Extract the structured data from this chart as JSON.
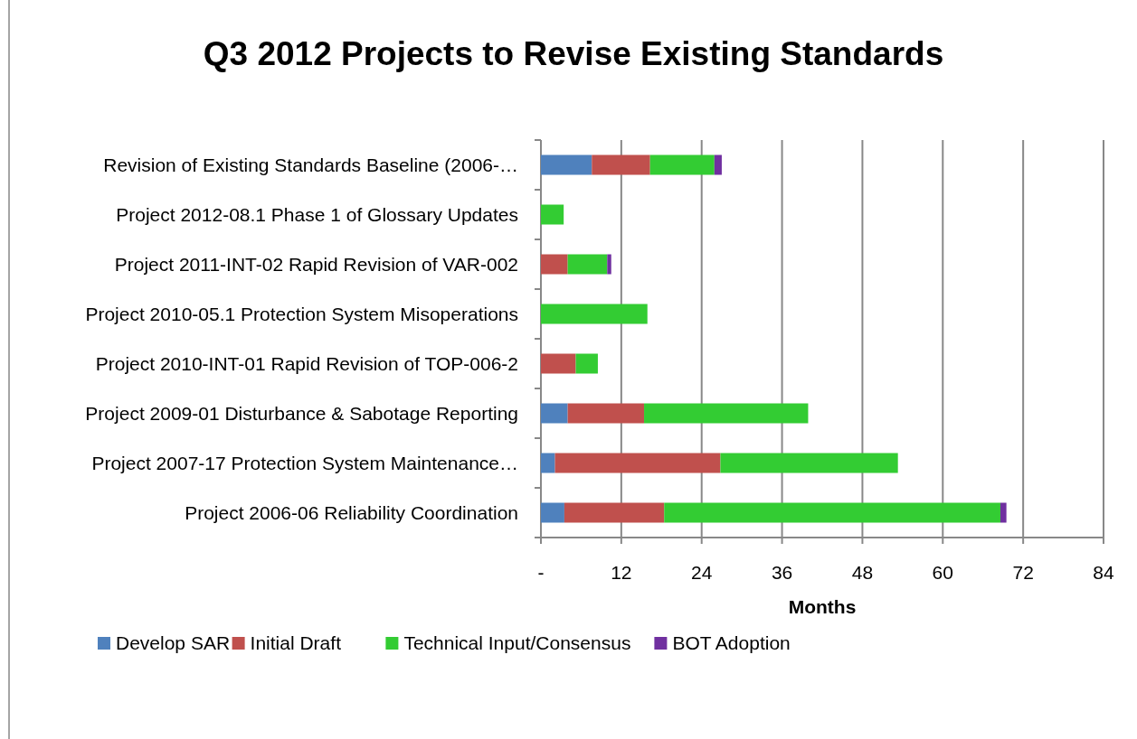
{
  "chart_data": {
    "type": "bar",
    "orientation": "horizontal",
    "stacked": true,
    "title": "Q3 2012 Projects to Revise Existing Standards",
    "xlabel": "Months",
    "categories": [
      "Revision of Existing Standards Baseline (2006-…",
      "Project 2012-08.1 Phase 1 of Glossary Updates",
      "Project 2011-INT-02 Rapid Revision of VAR-002",
      "Project 2010-05.1 Protection System Misoperations",
      "Project 2010-INT-01 Rapid Revision of TOP-006-2",
      "Project 2009-01 Disturbance & Sabotage Reporting",
      "Project 2007-17 Protection System Maintenance…",
      "Project 2006-06 Reliability Coordination"
    ],
    "series": [
      {
        "name": "Develop SAR",
        "color": "#4f81bd",
        "values": [
          7.6,
          0,
          0,
          0,
          0,
          4.0,
          2.1,
          3.5
        ]
      },
      {
        "name": "Initial Draft",
        "color": "#c0504d",
        "values": [
          8.7,
          0,
          4.0,
          0,
          5.2,
          11.4,
          24.7,
          14.9
        ]
      },
      {
        "name": "Technical Input/Consensus",
        "color": "#33cc33",
        "values": [
          9.6,
          3.4,
          5.9,
          15.9,
          3.3,
          24.5,
          26.5,
          50.2
        ]
      },
      {
        "name": "BOT Adoption",
        "color": "#7030a0",
        "values": [
          1.1,
          0,
          0.6,
          0,
          0,
          0,
          0,
          0.9
        ]
      }
    ],
    "xlim": [
      0,
      84
    ],
    "xticks": [
      {
        "value": 0,
        "label": "-"
      },
      12,
      24,
      36,
      48,
      60,
      72,
      84
    ],
    "grid": "x",
    "legend": "bottom"
  }
}
